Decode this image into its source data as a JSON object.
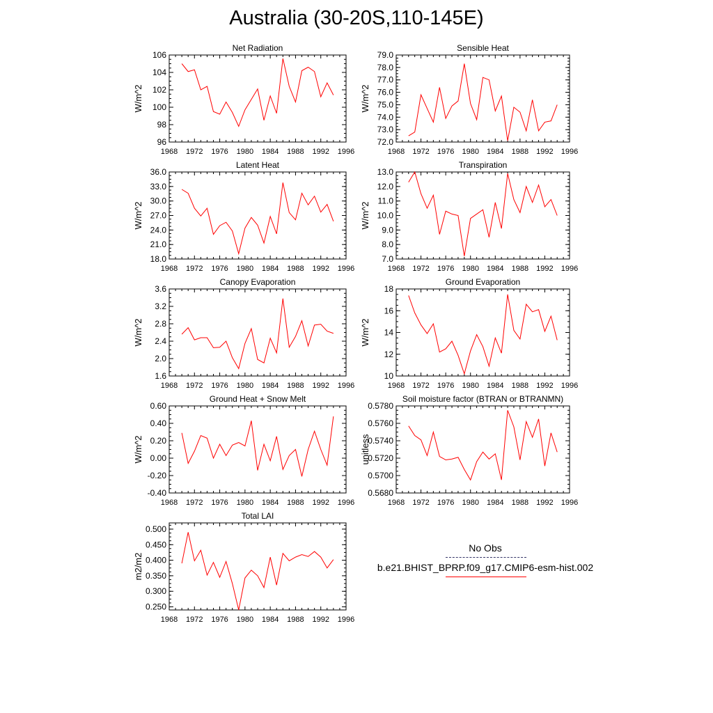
{
  "title": "Australia (30-20S,110-145E)",
  "line_color": "#ff0000",
  "legend": {
    "items": [
      {
        "label": "No Obs",
        "style": "dashed",
        "color": "#333366"
      },
      {
        "label": "b.e21.BHIST_BPRP.f09_g17.CMIP6-esm-hist.002",
        "style": "solid",
        "color": "#ff0000"
      }
    ]
  },
  "chart_data": [
    {
      "type": "line",
      "title": "Net Radiation",
      "ylabel": "W/m^2",
      "xlim": [
        1968,
        1996
      ],
      "ylim": [
        96,
        106
      ],
      "yticks": [
        "96",
        "98",
        "100",
        "102",
        "104",
        "106"
      ],
      "xticks": [
        "1968",
        "1972",
        "1976",
        "1980",
        "1984",
        "1988",
        "1992",
        "1996"
      ],
      "x": [
        1970,
        1971,
        1972,
        1973,
        1974,
        1975,
        1976,
        1977,
        1978,
        1979,
        1980,
        1981,
        1982,
        1983,
        1984,
        1985,
        1986,
        1987,
        1988,
        1989,
        1990,
        1991,
        1992,
        1993,
        1994
      ],
      "series": [
        {
          "values": [
            105.0,
            104.1,
            104.3,
            102.0,
            102.4,
            99.5,
            99.2,
            100.6,
            99.4,
            97.8,
            99.7,
            100.9,
            102.1,
            98.5,
            101.3,
            99.3,
            105.6,
            102.4,
            100.6,
            104.2,
            104.6,
            104.1,
            101.2,
            102.8,
            101.4
          ]
        }
      ]
    },
    {
      "type": "line",
      "title": "Sensible Heat",
      "ylabel": "W/m^2",
      "xlim": [
        1968,
        1996
      ],
      "ylim": [
        72,
        79
      ],
      "yticks": [
        "72.0",
        "73.0",
        "74.0",
        "75.0",
        "76.0",
        "77.0",
        "78.0",
        "79.0"
      ],
      "xticks": [
        "1968",
        "1972",
        "1976",
        "1980",
        "1984",
        "1988",
        "1992",
        "1996"
      ],
      "x": [
        1970,
        1971,
        1972,
        1973,
        1974,
        1975,
        1976,
        1977,
        1978,
        1979,
        1980,
        1981,
        1982,
        1983,
        1984,
        1985,
        1986,
        1987,
        1988,
        1989,
        1990,
        1991,
        1992,
        1993,
        1994
      ],
      "series": [
        {
          "values": [
            72.5,
            72.8,
            75.8,
            74.7,
            73.6,
            76.4,
            73.9,
            74.9,
            75.3,
            78.3,
            75.1,
            73.8,
            77.2,
            77.0,
            74.5,
            75.7,
            72.1,
            74.8,
            74.4,
            72.9,
            75.4,
            72.9,
            73.6,
            73.7,
            75.0
          ]
        }
      ]
    },
    {
      "type": "line",
      "title": "Latent Heat",
      "ylabel": "W/m^2",
      "xlim": [
        1968,
        1996
      ],
      "ylim": [
        18,
        36
      ],
      "yticks": [
        "18.0",
        "21.0",
        "24.0",
        "27.0",
        "30.0",
        "33.0",
        "36.0"
      ],
      "xticks": [
        "1968",
        "1972",
        "1976",
        "1980",
        "1984",
        "1988",
        "1992",
        "1996"
      ],
      "x": [
        1970,
        1971,
        1972,
        1973,
        1974,
        1975,
        1976,
        1977,
        1978,
        1979,
        1980,
        1981,
        1982,
        1983,
        1984,
        1985,
        1986,
        1987,
        1988,
        1989,
        1990,
        1991,
        1992,
        1993,
        1994
      ],
      "series": [
        {
          "values": [
            32.4,
            31.6,
            28.5,
            26.9,
            28.5,
            23.1,
            24.9,
            25.6,
            23.8,
            19.1,
            24.4,
            26.6,
            25.0,
            21.3,
            26.8,
            23.2,
            33.8,
            27.6,
            26.1,
            31.6,
            29.2,
            31.0,
            27.7,
            29.3,
            25.8
          ]
        }
      ]
    },
    {
      "type": "line",
      "title": "Transpiration",
      "ylabel": "W/m^2",
      "xlim": [
        1968,
        1996
      ],
      "ylim": [
        7,
        13
      ],
      "yticks": [
        "7.0",
        "8.0",
        "9.0",
        "10.0",
        "11.0",
        "12.0",
        "13.0"
      ],
      "xticks": [
        "1968",
        "1972",
        "1976",
        "1980",
        "1984",
        "1988",
        "1992",
        "1996"
      ],
      "x": [
        1970,
        1971,
        1972,
        1973,
        1974,
        1975,
        1976,
        1977,
        1978,
        1979,
        1980,
        1981,
        1982,
        1983,
        1984,
        1985,
        1986,
        1987,
        1988,
        1989,
        1990,
        1991,
        1992,
        1993,
        1994
      ],
      "series": [
        {
          "values": [
            12.3,
            13.0,
            11.5,
            10.5,
            11.4,
            8.7,
            10.3,
            10.1,
            10.0,
            7.2,
            9.8,
            10.1,
            10.4,
            8.5,
            10.9,
            9.1,
            12.9,
            11.1,
            10.2,
            12.0,
            10.9,
            12.1,
            10.6,
            11.1,
            10.0
          ]
        }
      ]
    },
    {
      "type": "line",
      "title": "Canopy Evaporation",
      "ylabel": "W/m^2",
      "xlim": [
        1968,
        1996
      ],
      "ylim": [
        1.6,
        3.6
      ],
      "yticks": [
        "1.6",
        "2.0",
        "2.4",
        "2.8",
        "3.2",
        "3.6"
      ],
      "xticks": [
        "1968",
        "1972",
        "1976",
        "1980",
        "1984",
        "1988",
        "1992",
        "1996"
      ],
      "x": [
        1970,
        1971,
        1972,
        1973,
        1974,
        1975,
        1976,
        1977,
        1978,
        1979,
        1980,
        1981,
        1982,
        1983,
        1984,
        1985,
        1986,
        1987,
        1988,
        1989,
        1990,
        1991,
        1992,
        1993,
        1994
      ],
      "series": [
        {
          "values": [
            2.56,
            2.71,
            2.43,
            2.48,
            2.48,
            2.25,
            2.26,
            2.4,
            2.02,
            1.77,
            2.35,
            2.69,
            1.98,
            1.9,
            2.47,
            2.13,
            3.38,
            2.26,
            2.51,
            2.87,
            2.29,
            2.77,
            2.79,
            2.63,
            2.58
          ]
        }
      ]
    },
    {
      "type": "line",
      "title": "Ground Evaporation",
      "ylabel": "W/m^2",
      "xlim": [
        1968,
        1996
      ],
      "ylim": [
        10,
        18
      ],
      "yticks": [
        "10",
        "12",
        "14",
        "16",
        "18"
      ],
      "xticks": [
        "1968",
        "1972",
        "1976",
        "1980",
        "1984",
        "1988",
        "1992",
        "1996"
      ],
      "x": [
        1970,
        1971,
        1972,
        1973,
        1974,
        1975,
        1976,
        1977,
        1978,
        1979,
        1980,
        1981,
        1982,
        1983,
        1984,
        1985,
        1986,
        1987,
        1988,
        1989,
        1990,
        1991,
        1992,
        1993,
        1994
      ],
      "series": [
        {
          "values": [
            17.4,
            15.8,
            14.7,
            13.9,
            14.8,
            12.2,
            12.5,
            13.2,
            11.9,
            10.2,
            12.3,
            13.8,
            12.7,
            10.9,
            13.5,
            12.1,
            17.5,
            14.2,
            13.4,
            16.6,
            15.9,
            16.1,
            14.1,
            15.5,
            13.3
          ]
        }
      ]
    },
    {
      "type": "line",
      "title": "Ground Heat + Snow Melt",
      "ylabel": "W/m^2",
      "xlim": [
        1968,
        1996
      ],
      "ylim": [
        -0.4,
        0.6
      ],
      "yticks": [
        "-0.40",
        "-0.20",
        "0.00",
        "0.20",
        "0.40",
        "0.60"
      ],
      "xticks": [
        "1968",
        "1972",
        "1976",
        "1980",
        "1984",
        "1988",
        "1992",
        "1996"
      ],
      "x": [
        1970,
        1971,
        1972,
        1973,
        1974,
        1975,
        1976,
        1977,
        1978,
        1979,
        1980,
        1981,
        1982,
        1983,
        1984,
        1985,
        1986,
        1987,
        1988,
        1989,
        1990,
        1991,
        1992,
        1993,
        1994
      ],
      "series": [
        {
          "values": [
            0.29,
            -0.06,
            0.08,
            0.26,
            0.23,
            0.0,
            0.16,
            0.03,
            0.15,
            0.18,
            0.14,
            0.43,
            -0.14,
            0.16,
            -0.03,
            0.25,
            -0.13,
            0.03,
            0.1,
            -0.21,
            0.1,
            0.31,
            0.1,
            -0.08,
            0.48
          ]
        }
      ]
    },
    {
      "type": "line",
      "title": "Soil moisture factor (BTRAN or BTRANMN)",
      "ylabel": "unitless",
      "xlim": [
        1968,
        1996
      ],
      "ylim": [
        0.568,
        0.578
      ],
      "yticks": [
        "0.5680",
        "0.5700",
        "0.5720",
        "0.5740",
        "0.5760",
        "0.5780"
      ],
      "xticks": [
        "1968",
        "1972",
        "1976",
        "1980",
        "1984",
        "1988",
        "1992",
        "1996"
      ],
      "x": [
        1970,
        1971,
        1972,
        1973,
        1974,
        1975,
        1976,
        1977,
        1978,
        1979,
        1980,
        1981,
        1982,
        1983,
        1984,
        1985,
        1986,
        1987,
        1988,
        1989,
        1990,
        1991,
        1992,
        1993,
        1994
      ],
      "series": [
        {
          "values": [
            0.5757,
            0.5746,
            0.5741,
            0.5723,
            0.575,
            0.5722,
            0.5718,
            0.5719,
            0.5721,
            0.5707,
            0.5695,
            0.5716,
            0.5727,
            0.5719,
            0.5725,
            0.5695,
            0.5775,
            0.5756,
            0.5718,
            0.5762,
            0.5744,
            0.5765,
            0.5711,
            0.5749,
            0.5727
          ]
        }
      ]
    },
    {
      "type": "line",
      "title": "Total LAI",
      "ylabel": "m2/m2",
      "xlim": [
        1968,
        1996
      ],
      "ylim": [
        0.24,
        0.52
      ],
      "yticks": [
        "0.250",
        "0.300",
        "0.350",
        "0.400",
        "0.450",
        "0.500"
      ],
      "ytick_values": [
        0.25,
        0.3,
        0.35,
        0.4,
        0.45,
        0.5
      ],
      "xticks": [
        "1968",
        "1972",
        "1976",
        "1980",
        "1984",
        "1988",
        "1992",
        "1996"
      ],
      "x": [
        1970,
        1971,
        1972,
        1973,
        1974,
        1975,
        1976,
        1977,
        1978,
        1979,
        1980,
        1981,
        1982,
        1983,
        1984,
        1985,
        1986,
        1987,
        1988,
        1989,
        1990,
        1991,
        1992,
        1993,
        1994
      ],
      "series": [
        {
          "values": [
            0.39,
            0.49,
            0.398,
            0.432,
            0.352,
            0.393,
            0.345,
            0.396,
            0.325,
            0.24,
            0.343,
            0.368,
            0.35,
            0.312,
            0.41,
            0.32,
            0.422,
            0.398,
            0.41,
            0.418,
            0.412,
            0.428,
            0.41,
            0.375,
            0.402
          ]
        }
      ]
    }
  ]
}
